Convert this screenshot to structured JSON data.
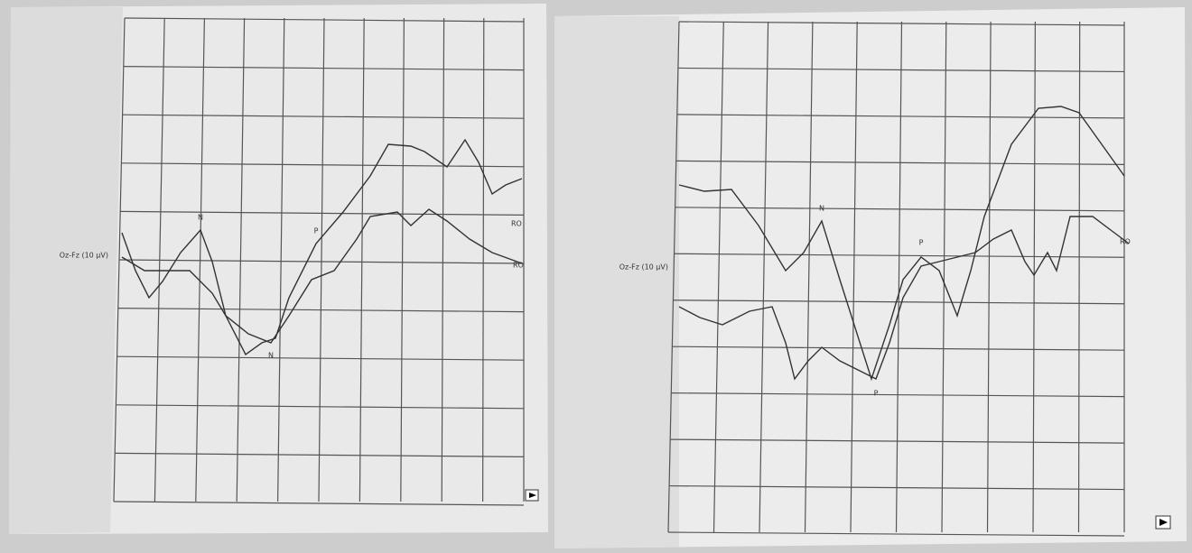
{
  "panels": [
    {
      "channel_label": "Oz-Fz (10 µV)",
      "peak_labels": [
        "N",
        "P",
        "N"
      ],
      "trace_labels": [
        "RO",
        "RO"
      ]
    },
    {
      "channel_label": "Oz-Fz (10 µV)",
      "peak_labels": [
        "N",
        "P",
        "P"
      ],
      "trace_labels": [
        "RO"
      ]
    }
  ]
}
